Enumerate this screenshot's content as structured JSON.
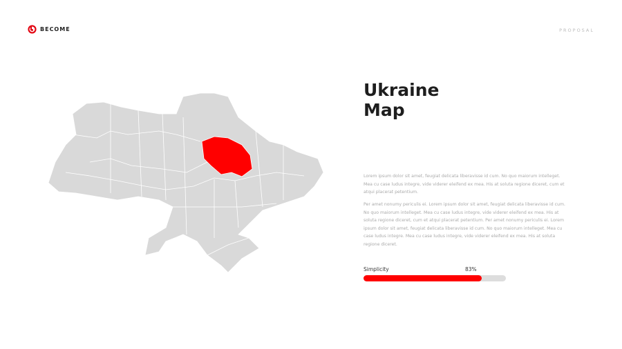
{
  "header": {
    "brand": "BECOME",
    "section": "PROPOSAL"
  },
  "map": {
    "country": "Ukraine",
    "highlighted_region": "Poltava",
    "base_color": "#d9d9d9",
    "highlight_color": "#ff0000"
  },
  "content": {
    "title_line1": "Ukraine",
    "title_line2": "Map",
    "paragraph1": "Lorem ipsum dolor sit amet, feugiat delicata liberavisse id cum. No quo maiorum intelleget. Mea cu case ludus integre, vide viderer eleifend ex mea. His at soluta regione diceret, cum et atqui placerat petentium.",
    "paragraph2": "Per amet nonumy periculis ei. Lorem ipsum dolor sit amet, feugiat delicata liberavisse id cum. No quo maiorum intelleget. Mea cu case ludus integre, vide viderer eleifend ex mea. His at soluta regione diceret, cum et atqui placerat petentium. Per amet nonumy periculis ei. Lorem ipsum dolor sit amet, feugiat delicata liberavisse id cum. No quo maiorum intelleget. Mea cu case ludus integre. Mea cu case ludus integre, vide viderer eleifend ex mea. His at soluta regione diceret."
  },
  "progress": {
    "label": "Simplicity",
    "value_text": "83%",
    "value": 83,
    "color": "#ff0000"
  }
}
